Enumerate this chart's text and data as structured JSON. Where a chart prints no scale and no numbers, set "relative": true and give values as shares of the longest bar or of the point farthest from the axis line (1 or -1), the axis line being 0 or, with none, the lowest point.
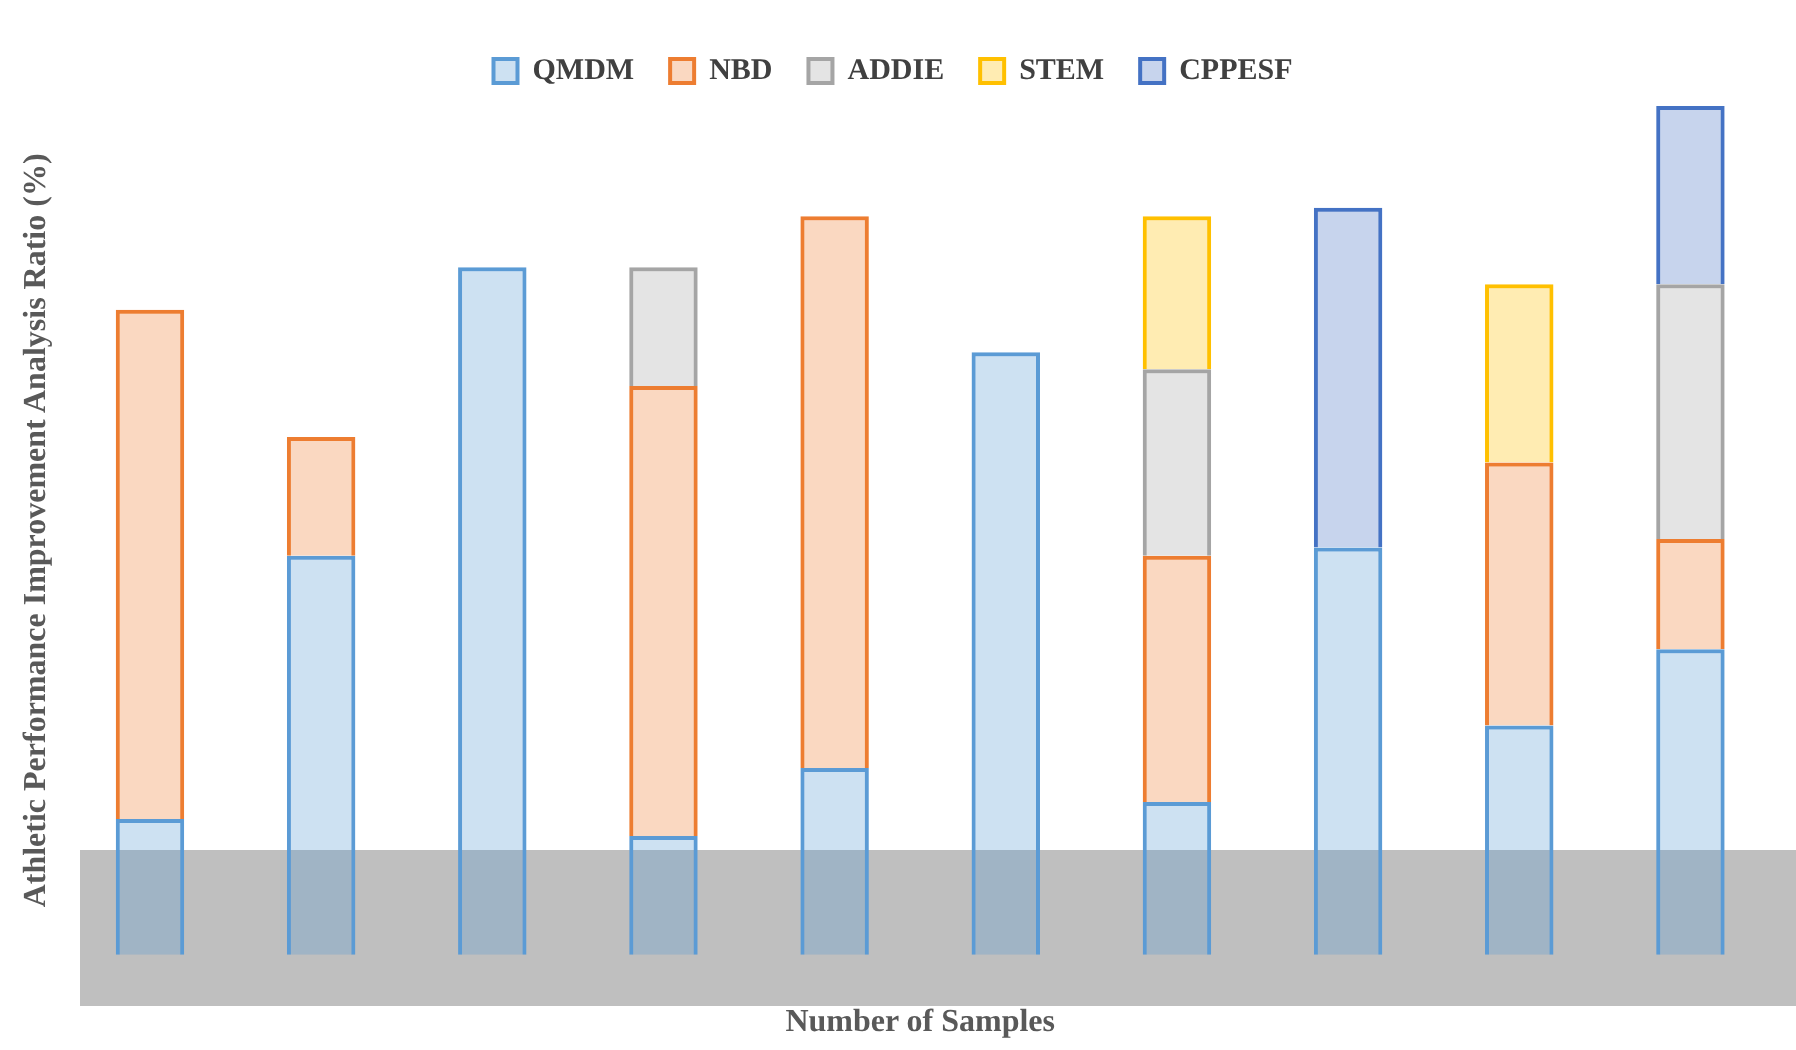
{
  "chart_data": {
    "type": "bar",
    "stacked": true,
    "relative": true,
    "grid": false,
    "legend": "top",
    "xlabel": "Number of Samples",
    "ylabel": "Athletic Performance Improvement Analysis Ratio (%)",
    "categories": [
      null,
      null,
      null,
      null,
      null,
      null,
      null,
      null,
      null,
      null
    ],
    "series": [
      {
        "name": "QMDM",
        "color": "#5b9bd5",
        "values": [
          0.16,
          0.47,
          0.81,
          0.14,
          0.22,
          0.71,
          0.18,
          0.48,
          0.27,
          0.36
        ]
      },
      {
        "name": "NBD",
        "color": "#ed7d31",
        "values": [
          0.6,
          0.14,
          null,
          0.53,
          0.65,
          null,
          0.29,
          null,
          0.31,
          0.13
        ]
      },
      {
        "name": "ADDIE",
        "color": "#a5a5a5",
        "values": [
          null,
          null,
          null,
          0.14,
          null,
          null,
          0.22,
          null,
          null,
          0.3
        ]
      },
      {
        "name": "STEM",
        "color": "#ffc000",
        "values": [
          null,
          null,
          null,
          null,
          null,
          null,
          0.18,
          null,
          0.21,
          null
        ]
      },
      {
        "name": "CPPESF",
        "color": "#4472c4",
        "values": [
          null,
          null,
          null,
          null,
          null,
          null,
          null,
          0.4,
          null,
          0.21
        ]
      }
    ]
  }
}
